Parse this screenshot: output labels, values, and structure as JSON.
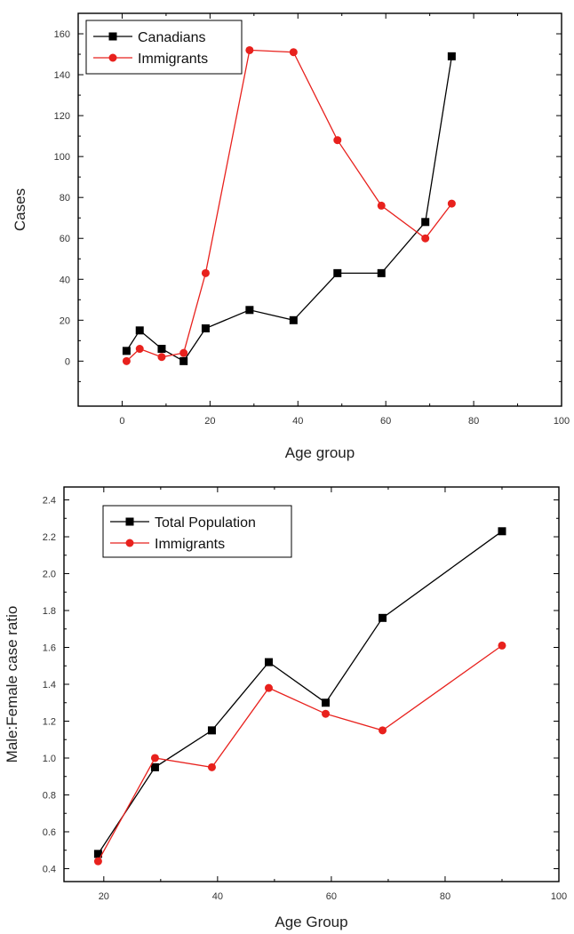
{
  "chart_data": [
    {
      "type": "line",
      "title": "",
      "xlabel": "Age group",
      "ylabel": "Cases",
      "xlim": [
        -10,
        100
      ],
      "ylim": [
        -22,
        170
      ],
      "x_ticks": [
        0,
        20,
        40,
        60,
        80,
        100
      ],
      "y_ticks": [
        0,
        20,
        40,
        60,
        80,
        100,
        120,
        140,
        160
      ],
      "grid": false,
      "legend_position": "top-left",
      "series": [
        {
          "name": "Canadians",
          "color": "#000000",
          "marker": "square",
          "x": [
            1,
            4,
            9,
            14,
            19,
            29,
            39,
            49,
            59,
            69,
            75
          ],
          "y": [
            5,
            15,
            6,
            0,
            16,
            25,
            20,
            43,
            43,
            68,
            149
          ]
        },
        {
          "name": "Immigrants",
          "color": "#e8211d",
          "marker": "circle",
          "x": [
            1,
            4,
            9,
            14,
            19,
            29,
            39,
            49,
            59,
            69,
            75
          ],
          "y": [
            0,
            6,
            2,
            4,
            43,
            152,
            151,
            108,
            76,
            60,
            77
          ]
        }
      ]
    },
    {
      "type": "line",
      "title": "",
      "xlabel": "Age Group",
      "ylabel": "Male:Female case ratio",
      "xlim": [
        13,
        100
      ],
      "ylim": [
        0.33,
        2.47
      ],
      "x_ticks": [
        20,
        40,
        60,
        80,
        100
      ],
      "y_ticks": [
        0.4,
        0.6,
        0.8,
        1.0,
        1.2,
        1.4,
        1.6,
        1.8,
        2.0,
        2.2,
        2.4
      ],
      "grid": false,
      "legend_position": "top-left",
      "series": [
        {
          "name": "Total Population",
          "color": "#000000",
          "marker": "square",
          "x": [
            19,
            29,
            39,
            49,
            59,
            69,
            90
          ],
          "y": [
            0.48,
            0.95,
            1.15,
            1.52,
            1.3,
            1.76,
            2.23
          ]
        },
        {
          "name": "Immigrants",
          "color": "#e8211d",
          "marker": "circle",
          "x": [
            19,
            29,
            39,
            49,
            59,
            69,
            90
          ],
          "y": [
            0.44,
            1.0,
            0.95,
            1.38,
            1.24,
            1.15,
            1.61
          ]
        }
      ]
    }
  ]
}
